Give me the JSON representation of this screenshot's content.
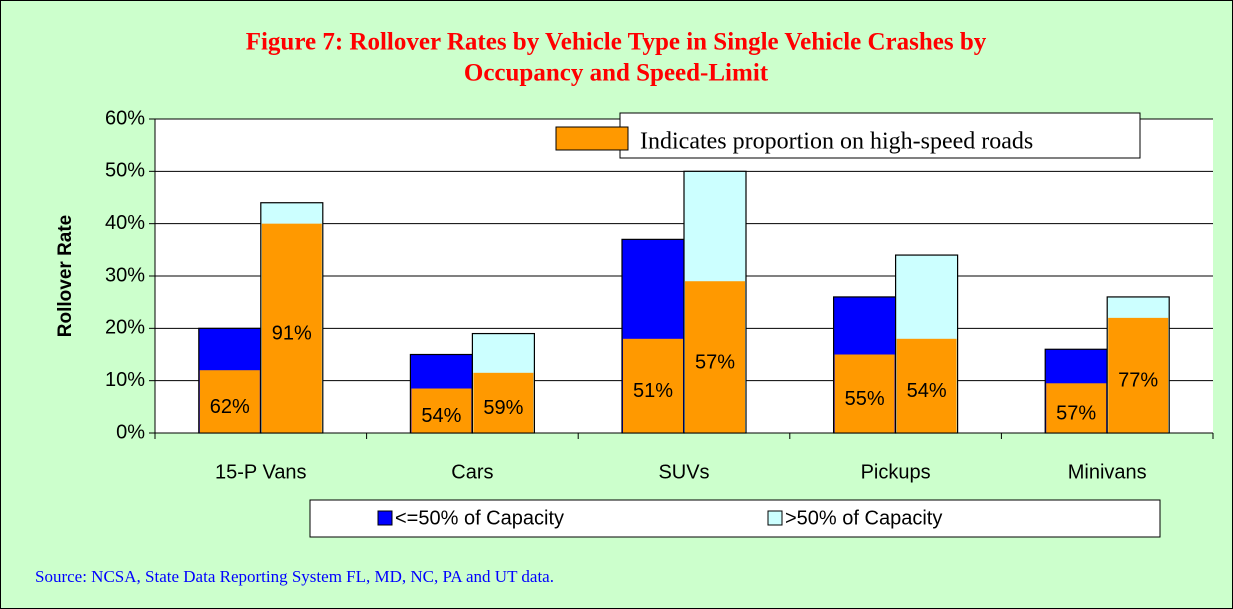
{
  "chart_data": {
    "type": "bar",
    "title": "Figure 7: Rollover Rates by Vehicle Type in Single Vehicle Crashes by",
    "title_line2": "Occupancy and Speed-Limit",
    "ylabel": "Rollover Rate",
    "categories": [
      "15-P Vans",
      "Cars",
      "SUVs",
      "Pickups",
      "Minivans"
    ],
    "series": [
      {
        "name": "<=50% of Capacity",
        "color": "#0000ff",
        "values": [
          20,
          15,
          37,
          26,
          16
        ],
        "high_speed": [
          12,
          8.5,
          18,
          15,
          9.5
        ],
        "high_speed_labels": [
          "62%",
          "54%",
          "51%",
          "55%",
          "57%"
        ]
      },
      {
        "name": ">50% of Capacity",
        "color": "#ccffff",
        "values": [
          44,
          19,
          50,
          34,
          26
        ],
        "high_speed": [
          40,
          11.5,
          29,
          18,
          22
        ],
        "high_speed_labels": [
          "91%",
          "59%",
          "57%",
          "54%",
          "77%"
        ]
      }
    ],
    "overlay_name": "Indicates proportion on high-speed roads",
    "overlay_color": "#ff9900",
    "ylim": [
      0,
      60
    ],
    "yticks": [
      {
        "value": 0,
        "label": "0%"
      },
      {
        "value": 10,
        "label": "10%"
      },
      {
        "value": 20,
        "label": "20%"
      },
      {
        "value": 30,
        "label": "30%"
      },
      {
        "value": 40,
        "label": "40%"
      },
      {
        "value": 50,
        "label": "50%"
      },
      {
        "value": 60,
        "label": "60%"
      }
    ],
    "source": "Source: NCSA, State Data Reporting System FL, MD, NC, PA and UT data."
  }
}
